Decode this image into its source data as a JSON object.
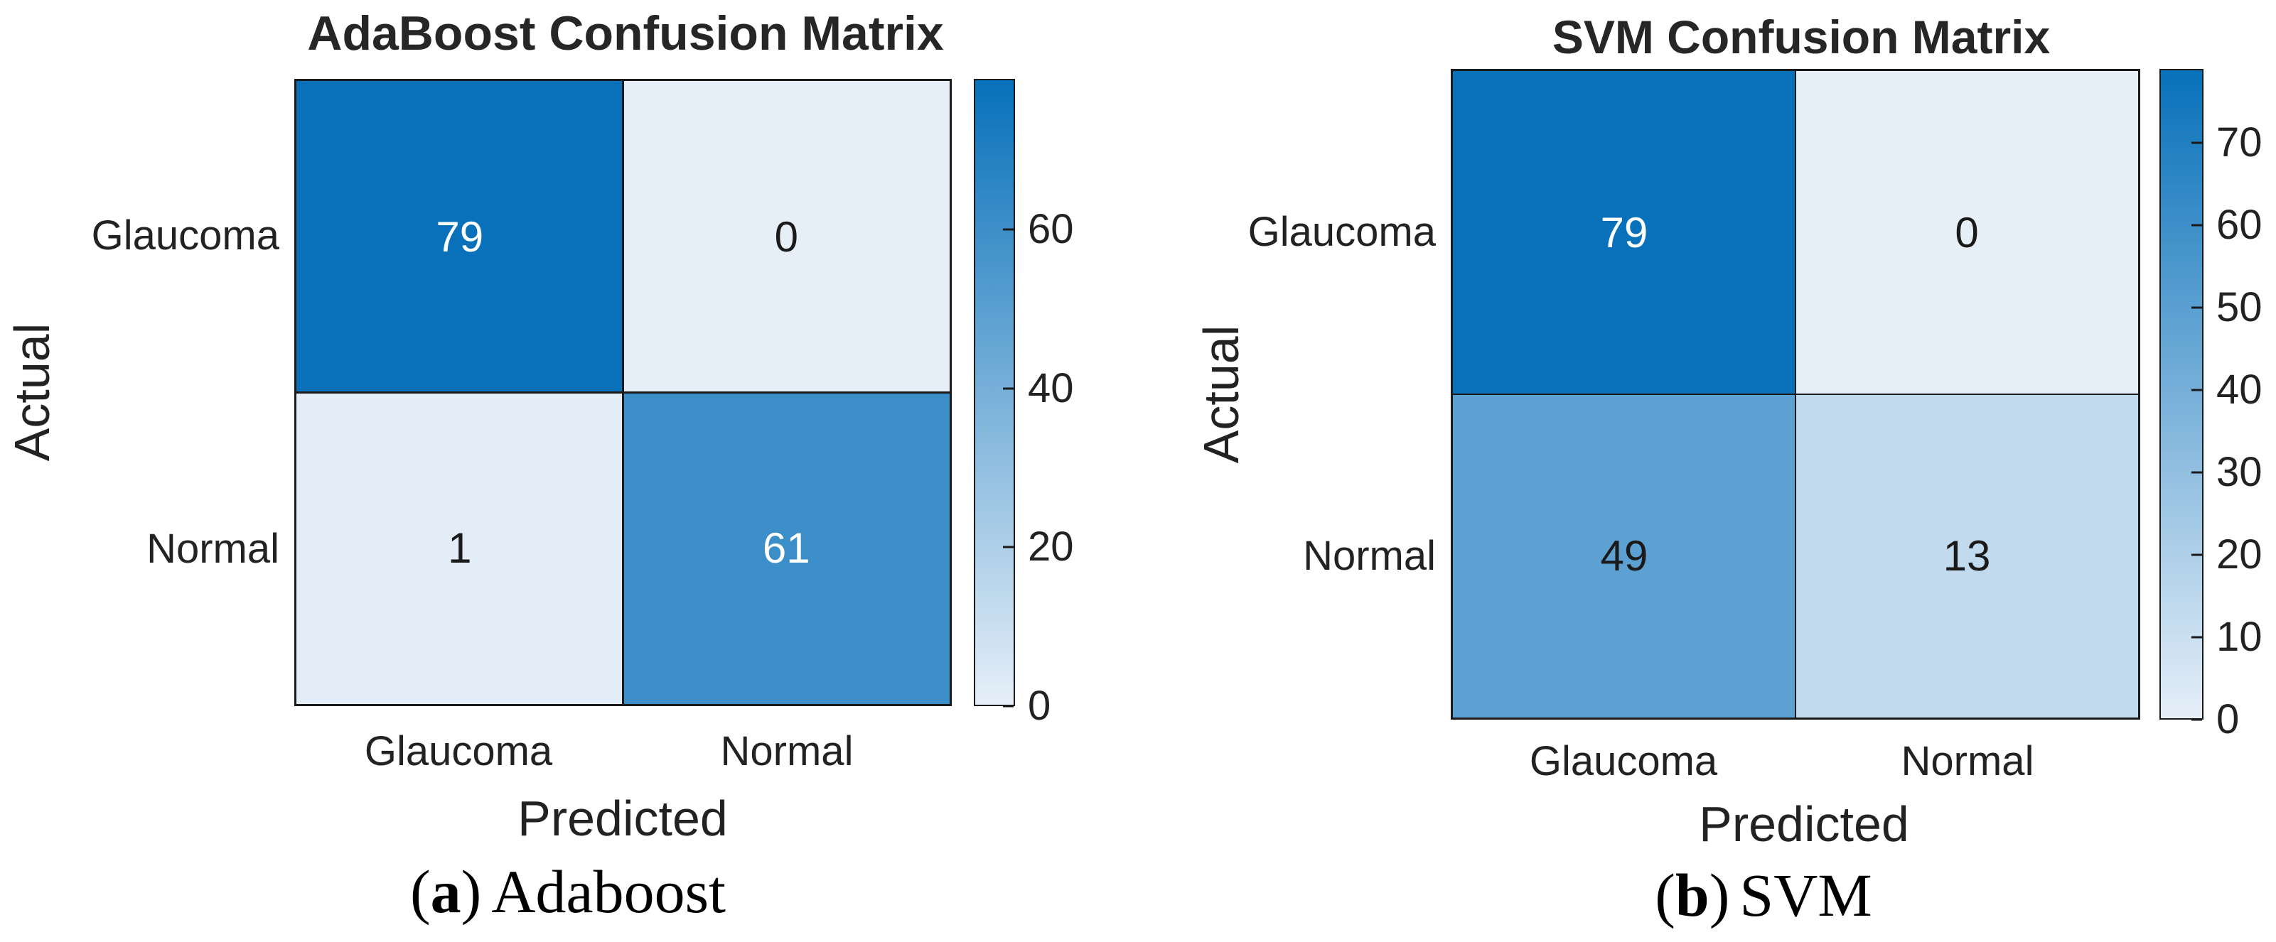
{
  "colors": {
    "cmap_low": "#e6eff8",
    "cmap_high": "#0871ba",
    "line": "#1a1a1a",
    "text": "#222222"
  },
  "chart_data": [
    {
      "type": "heatmap",
      "title": "AdaBoost Confusion Matrix",
      "xlabel": "Predicted",
      "ylabel": "Actual",
      "x_categories": [
        "Glaucoma",
        "Normal"
      ],
      "y_categories": [
        "Glaucoma",
        "Normal"
      ],
      "matrix": [
        [
          79,
          0
        ],
        [
          1,
          61
        ]
      ],
      "cell_bg_colors": [
        [
          "#0871ba",
          "#e6eff8"
        ],
        [
          "#e3edf7",
          "#3b8ec8"
        ]
      ],
      "cell_text_colors": [
        [
          "#ffffff",
          "#1a1a1a"
        ],
        [
          "#1a1a1a",
          "#ffffff"
        ]
      ],
      "colorbar": {
        "min": 0,
        "max": 79,
        "tick_values": [
          0,
          20,
          40,
          60
        ],
        "tick_labels": [
          "0",
          "20",
          "40",
          "60"
        ]
      },
      "caption": {
        "prefix": "(",
        "letter": "a",
        "suffix": ")",
        "label": "Adaboost"
      }
    },
    {
      "type": "heatmap",
      "title": "SVM Confusion Matrix",
      "xlabel": "Predicted",
      "ylabel": "Actual",
      "x_categories": [
        "Glaucoma",
        "Normal"
      ],
      "y_categories": [
        "Glaucoma",
        "Normal"
      ],
      "matrix": [
        [
          79,
          0
        ],
        [
          49,
          13
        ]
      ],
      "cell_bg_colors": [
        [
          "#0871ba",
          "#e6eff8"
        ],
        [
          "#5ca1d2",
          "#c1daee"
        ]
      ],
      "cell_text_colors": [
        [
          "#ffffff",
          "#1a1a1a"
        ],
        [
          "#1a1a1a",
          "#1a1a1a"
        ]
      ],
      "colorbar": {
        "min": 0,
        "max": 79,
        "tick_values": [
          0,
          10,
          20,
          30,
          40,
          50,
          60,
          70
        ],
        "tick_labels": [
          "0",
          "10",
          "20",
          "30",
          "40",
          "50",
          "60",
          "70"
        ]
      },
      "caption": {
        "prefix": "(",
        "letter": "b",
        "suffix": ")",
        "label": "SVM"
      }
    }
  ]
}
